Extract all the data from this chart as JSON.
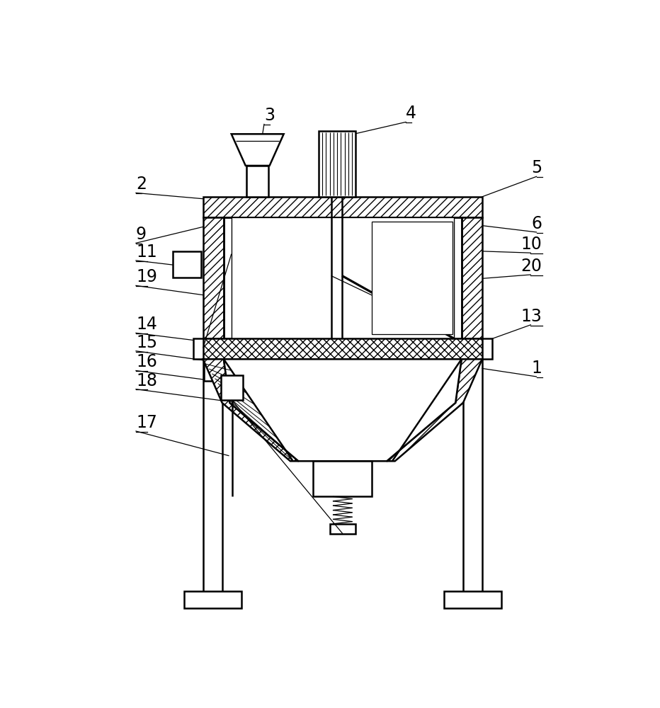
{
  "line_color": "#000000",
  "bg_color": "#ffffff",
  "lw": 1.8,
  "thin_lw": 0.9,
  "labels_left": [
    [
      "2",
      95,
      198,
      255,
      212
    ],
    [
      "9",
      95,
      290,
      252,
      252
    ],
    [
      "11",
      95,
      322,
      205,
      335
    ],
    [
      "19",
      95,
      368,
      252,
      390
    ],
    [
      "14",
      95,
      455,
      255,
      475
    ],
    [
      "15",
      95,
      488,
      255,
      510
    ],
    [
      "16",
      95,
      524,
      255,
      545
    ],
    [
      "18",
      95,
      558,
      260,
      580
    ],
    [
      "17",
      95,
      635,
      265,
      680
    ]
  ],
  "labels_right": [
    [
      "5",
      840,
      168,
      730,
      205
    ],
    [
      "6",
      840,
      270,
      730,
      258
    ],
    [
      "10",
      840,
      308,
      730,
      305
    ],
    [
      "20",
      840,
      348,
      730,
      355
    ],
    [
      "13",
      840,
      440,
      730,
      472
    ],
    [
      "1",
      840,
      535,
      730,
      520
    ]
  ],
  "labels_top": [
    [
      "3",
      330,
      72,
      318,
      148
    ],
    [
      "4",
      590,
      68,
      460,
      98
    ]
  ]
}
